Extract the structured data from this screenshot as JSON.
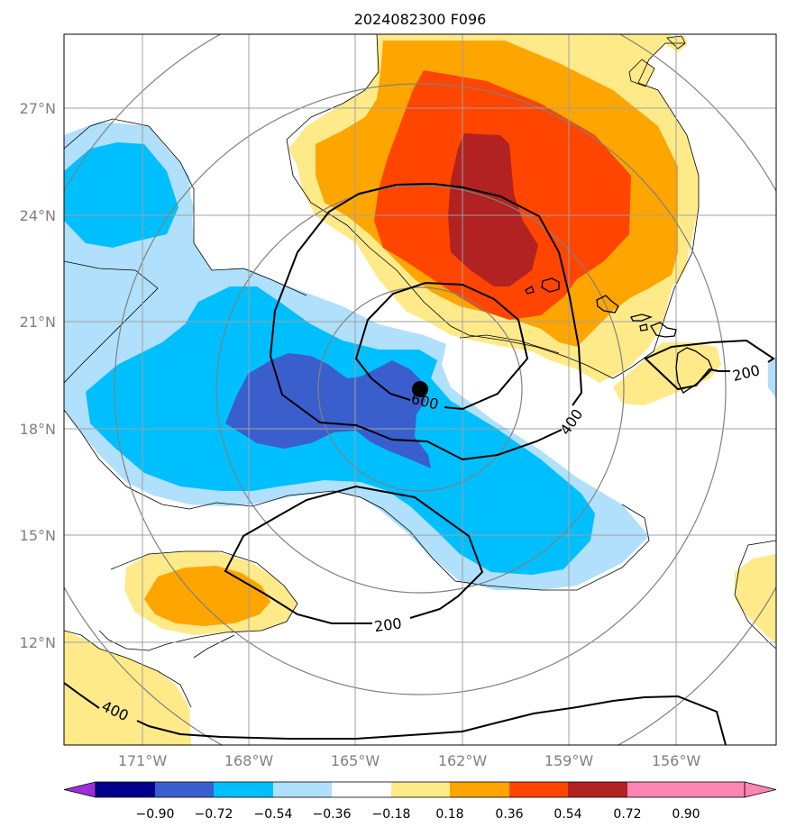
{
  "title": "2024082300 F096",
  "lat_labels": [
    "27°N",
    "24°N",
    "21°N",
    "18°N",
    "15°N",
    "12°N"
  ],
  "lon_labels": [
    "171°W",
    "168°W",
    "165°W",
    "162°W",
    "159°W",
    "156°W"
  ],
  "contour_labels": [
    "600",
    "400",
    "200",
    "200",
    "400",
    "200"
  ],
  "colorbar": {
    "colors": [
      "#9b30d9",
      "#00008b",
      "#3a5fcd",
      "#00bfff",
      "#b0e0fb",
      "#ffffff",
      "#ffea8a",
      "#ffa500",
      "#ff4500",
      "#b22222",
      "#ff85b3"
    ],
    "ticks": [
      "−0.90",
      "−0.72",
      "−0.54",
      "−0.36",
      "−0.18",
      "0.18",
      "0.36",
      "0.54",
      "0.72",
      "0.90"
    ]
  },
  "colors": {
    "weak_pos": "#ffea8a",
    "mid_pos": "#ffa500",
    "strong_pos": "#ff4500",
    "max_pos": "#b22222",
    "weak_neg": "#b0e0fb",
    "mid_neg": "#00bfff",
    "strong_neg": "#3a5fcd"
  }
}
